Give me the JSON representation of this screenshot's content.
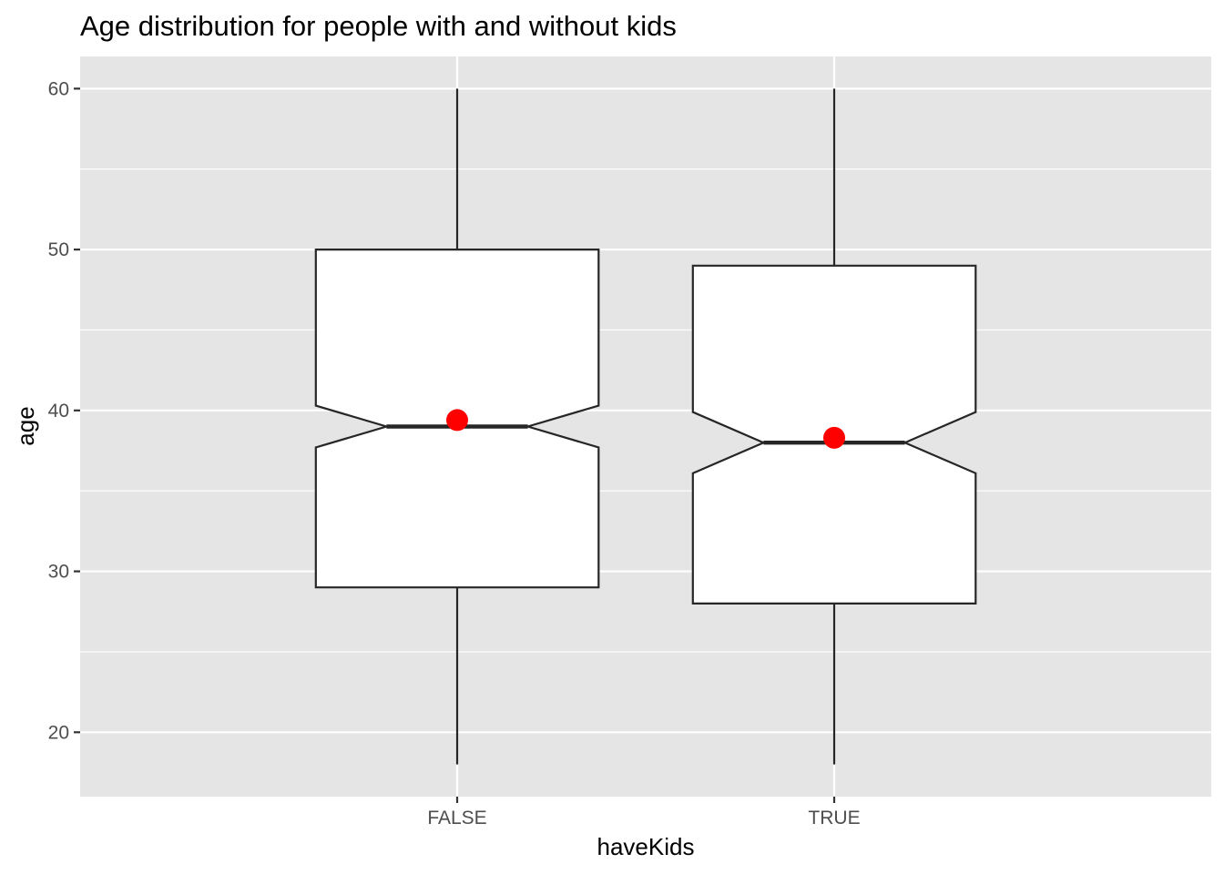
{
  "chart_data": {
    "type": "boxplot",
    "title": "Age distribution for people with and without kids",
    "xlabel": "haveKids",
    "ylabel": "age",
    "categories": [
      "FALSE",
      "TRUE"
    ],
    "ylim": [
      16,
      62
    ],
    "y_ticks": [
      20,
      30,
      40,
      50,
      60
    ],
    "notched": true,
    "grid": true,
    "boxes": [
      {
        "category": "FALSE",
        "whisker_low": 18,
        "q1": 29,
        "median": 39,
        "q3": 50,
        "whisker_high": 60,
        "notch_low": 37.7,
        "notch_high": 40.3,
        "mean": 39.4
      },
      {
        "category": "TRUE",
        "whisker_low": 18,
        "q1": 28,
        "median": 38,
        "q3": 49,
        "whisker_high": 60,
        "notch_low": 36.1,
        "notch_high": 39.9,
        "mean": 38.3
      }
    ],
    "colors": {
      "panel_background": "#E5E5E5",
      "grid": "#FFFFFF",
      "box_fill": "#FFFFFF",
      "box_outline": "#262626",
      "mean_point": "#FF0000",
      "tick_label": "#4D4D4D"
    }
  }
}
